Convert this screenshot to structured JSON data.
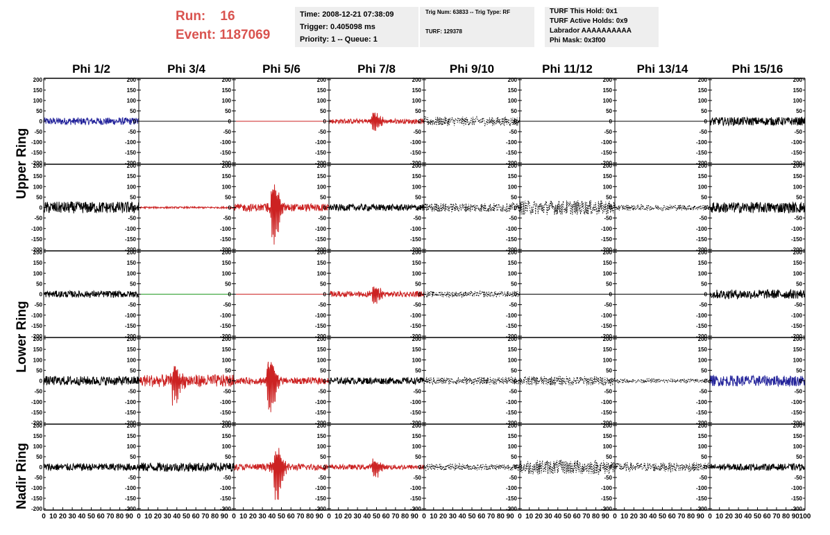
{
  "header": {
    "run_label": "Run:",
    "run_value": "16",
    "event_label": "Event:",
    "event_value": "1187069",
    "box1": [
      "Time: 2008-12-21 07:38:09",
      "Trigger: 0.405098 ms",
      "Priority: 1 -- Queue: 1"
    ],
    "box2": [
      "Trig Num: 63833 -- Trig Type: RF",
      "TURF: 129378"
    ],
    "box3": [
      "TURF This Hold: 0x1",
      "TURF Active Holds: 0x9",
      "Labrador AAAAAAAAAA",
      "Phi Mask: 0x3f00"
    ]
  },
  "colors": {
    "run_text": "#d9534f",
    "black": "#000000",
    "red": "#cc2222",
    "blue": "#22229a",
    "green": "#229922",
    "info_bg": "#eeeeee"
  },
  "chart_data": {
    "type": "line",
    "columns": [
      "Phi 1/2",
      "Phi 3/4",
      "Phi 5/6",
      "Phi 7/8",
      "Phi 9/10",
      "Phi 11/12",
      "Phi 13/14",
      "Phi 15/16"
    ],
    "row_labels": [
      "Upper Ring",
      "Lower Ring",
      "Nadir Ring"
    ],
    "ylim": [
      -200,
      200
    ],
    "yticks": [
      "200",
      "150",
      "100",
      "50",
      "0",
      "-50",
      "-100",
      "-150",
      "-200"
    ],
    "xlim": [
      0,
      100
    ],
    "xticks": [
      "0",
      "10",
      "20",
      "30",
      "40",
      "50",
      "60",
      "70",
      "80",
      "90",
      "100"
    ],
    "panels": [
      [
        {
          "color": "blue",
          "style": "solid",
          "amp": 18,
          "burst_x": 0,
          "burst_amp": 0
        },
        {
          "color": "black",
          "style": "solid",
          "amp": 0,
          "burst_x": 0,
          "burst_amp": 0
        },
        {
          "color": "red",
          "style": "solid",
          "amp": 0,
          "burst_x": 0,
          "burst_amp": 0
        },
        {
          "color": "red",
          "style": "solid",
          "amp": 12,
          "burst_x": 48,
          "burst_amp": 65
        },
        {
          "color": "black",
          "style": "dashed",
          "amp": 22,
          "burst_x": 0,
          "burst_amp": 0
        },
        {
          "color": "black",
          "style": "solid",
          "amp": 0,
          "burst_x": 0,
          "burst_amp": 0
        },
        {
          "color": "black",
          "style": "solid",
          "amp": 0,
          "burst_x": 0,
          "burst_amp": 0
        },
        {
          "color": "black",
          "style": "solid",
          "amp": 20,
          "burst_x": 0,
          "burst_amp": 0
        }
      ],
      [
        {
          "color": "black",
          "style": "solid",
          "amp": 28,
          "burst_x": 0,
          "burst_amp": 0
        },
        {
          "color": "red",
          "style": "solid",
          "amp": 4,
          "burst_x": 0,
          "burst_amp": 0
        },
        {
          "color": "red",
          "style": "solid",
          "amp": 18,
          "burst_x": 42,
          "burst_amp": 190
        },
        {
          "color": "black",
          "style": "solid",
          "amp": 16,
          "burst_x": 0,
          "burst_amp": 0
        },
        {
          "color": "black",
          "style": "dashed",
          "amp": 22,
          "burst_x": 0,
          "burst_amp": 0
        },
        {
          "color": "black",
          "style": "dashed",
          "amp": 35,
          "burst_x": 0,
          "burst_amp": 0
        },
        {
          "color": "black",
          "style": "dashed",
          "amp": 14,
          "burst_x": 0,
          "burst_amp": 0
        },
        {
          "color": "black",
          "style": "solid",
          "amp": 26,
          "burst_x": 0,
          "burst_amp": 0
        }
      ],
      [
        {
          "color": "black",
          "style": "solid",
          "amp": 16,
          "burst_x": 0,
          "burst_amp": 0
        },
        {
          "color": "green",
          "style": "solid",
          "amp": 0,
          "burst_x": 0,
          "burst_amp": 0
        },
        {
          "color": "red",
          "style": "solid",
          "amp": 0,
          "burst_x": 0,
          "burst_amp": 0
        },
        {
          "color": "red",
          "style": "solid",
          "amp": 14,
          "burst_x": 48,
          "burst_amp": 55
        },
        {
          "color": "black",
          "style": "dashed",
          "amp": 14,
          "burst_x": 0,
          "burst_amp": 0
        },
        {
          "color": "black",
          "style": "solid",
          "amp": 0,
          "burst_x": 0,
          "burst_amp": 0
        },
        {
          "color": "black",
          "style": "solid",
          "amp": 0,
          "burst_x": 0,
          "burst_amp": 0
        },
        {
          "color": "black",
          "style": "solid",
          "amp": 22,
          "burst_x": 0,
          "burst_amp": 0
        }
      ],
      [
        {
          "color": "black",
          "style": "solid",
          "amp": 22,
          "burst_x": 0,
          "burst_amp": 0
        },
        {
          "color": "red",
          "style": "solid",
          "amp": 30,
          "burst_x": 38,
          "burst_amp": 110
        },
        {
          "color": "red",
          "style": "solid",
          "amp": 16,
          "burst_x": 38,
          "burst_amp": 170
        },
        {
          "color": "black",
          "style": "solid",
          "amp": 16,
          "burst_x": 0,
          "burst_amp": 0
        },
        {
          "color": "black",
          "style": "dashed",
          "amp": 18,
          "burst_x": 0,
          "burst_amp": 0
        },
        {
          "color": "black",
          "style": "dashed",
          "amp": 22,
          "burst_x": 0,
          "burst_amp": 0
        },
        {
          "color": "black",
          "style": "dashed",
          "amp": 10,
          "burst_x": 0,
          "burst_amp": 0
        },
        {
          "color": "blue",
          "style": "solid",
          "amp": 26,
          "burst_x": 0,
          "burst_amp": 0
        }
      ],
      [
        {
          "color": "black",
          "style": "solid",
          "amp": 18,
          "burst_x": 0,
          "burst_amp": 0
        },
        {
          "color": "black",
          "style": "solid",
          "amp": 22,
          "burst_x": 0,
          "burst_amp": 0
        },
        {
          "color": "red",
          "style": "solid",
          "amp": 16,
          "burst_x": 45,
          "burst_amp": 160
        },
        {
          "color": "red",
          "style": "solid",
          "amp": 12,
          "burst_x": 48,
          "burst_amp": 55
        },
        {
          "color": "black",
          "style": "dashed",
          "amp": 16,
          "burst_x": 0,
          "burst_amp": 0
        },
        {
          "color": "black",
          "style": "dashed",
          "amp": 35,
          "burst_x": 0,
          "burst_amp": 0
        },
        {
          "color": "black",
          "style": "dashed",
          "amp": 22,
          "burst_x": 0,
          "burst_amp": 0
        },
        {
          "color": "black",
          "style": "solid",
          "amp": 16,
          "burst_x": 0,
          "burst_amp": 0
        }
      ]
    ]
  }
}
